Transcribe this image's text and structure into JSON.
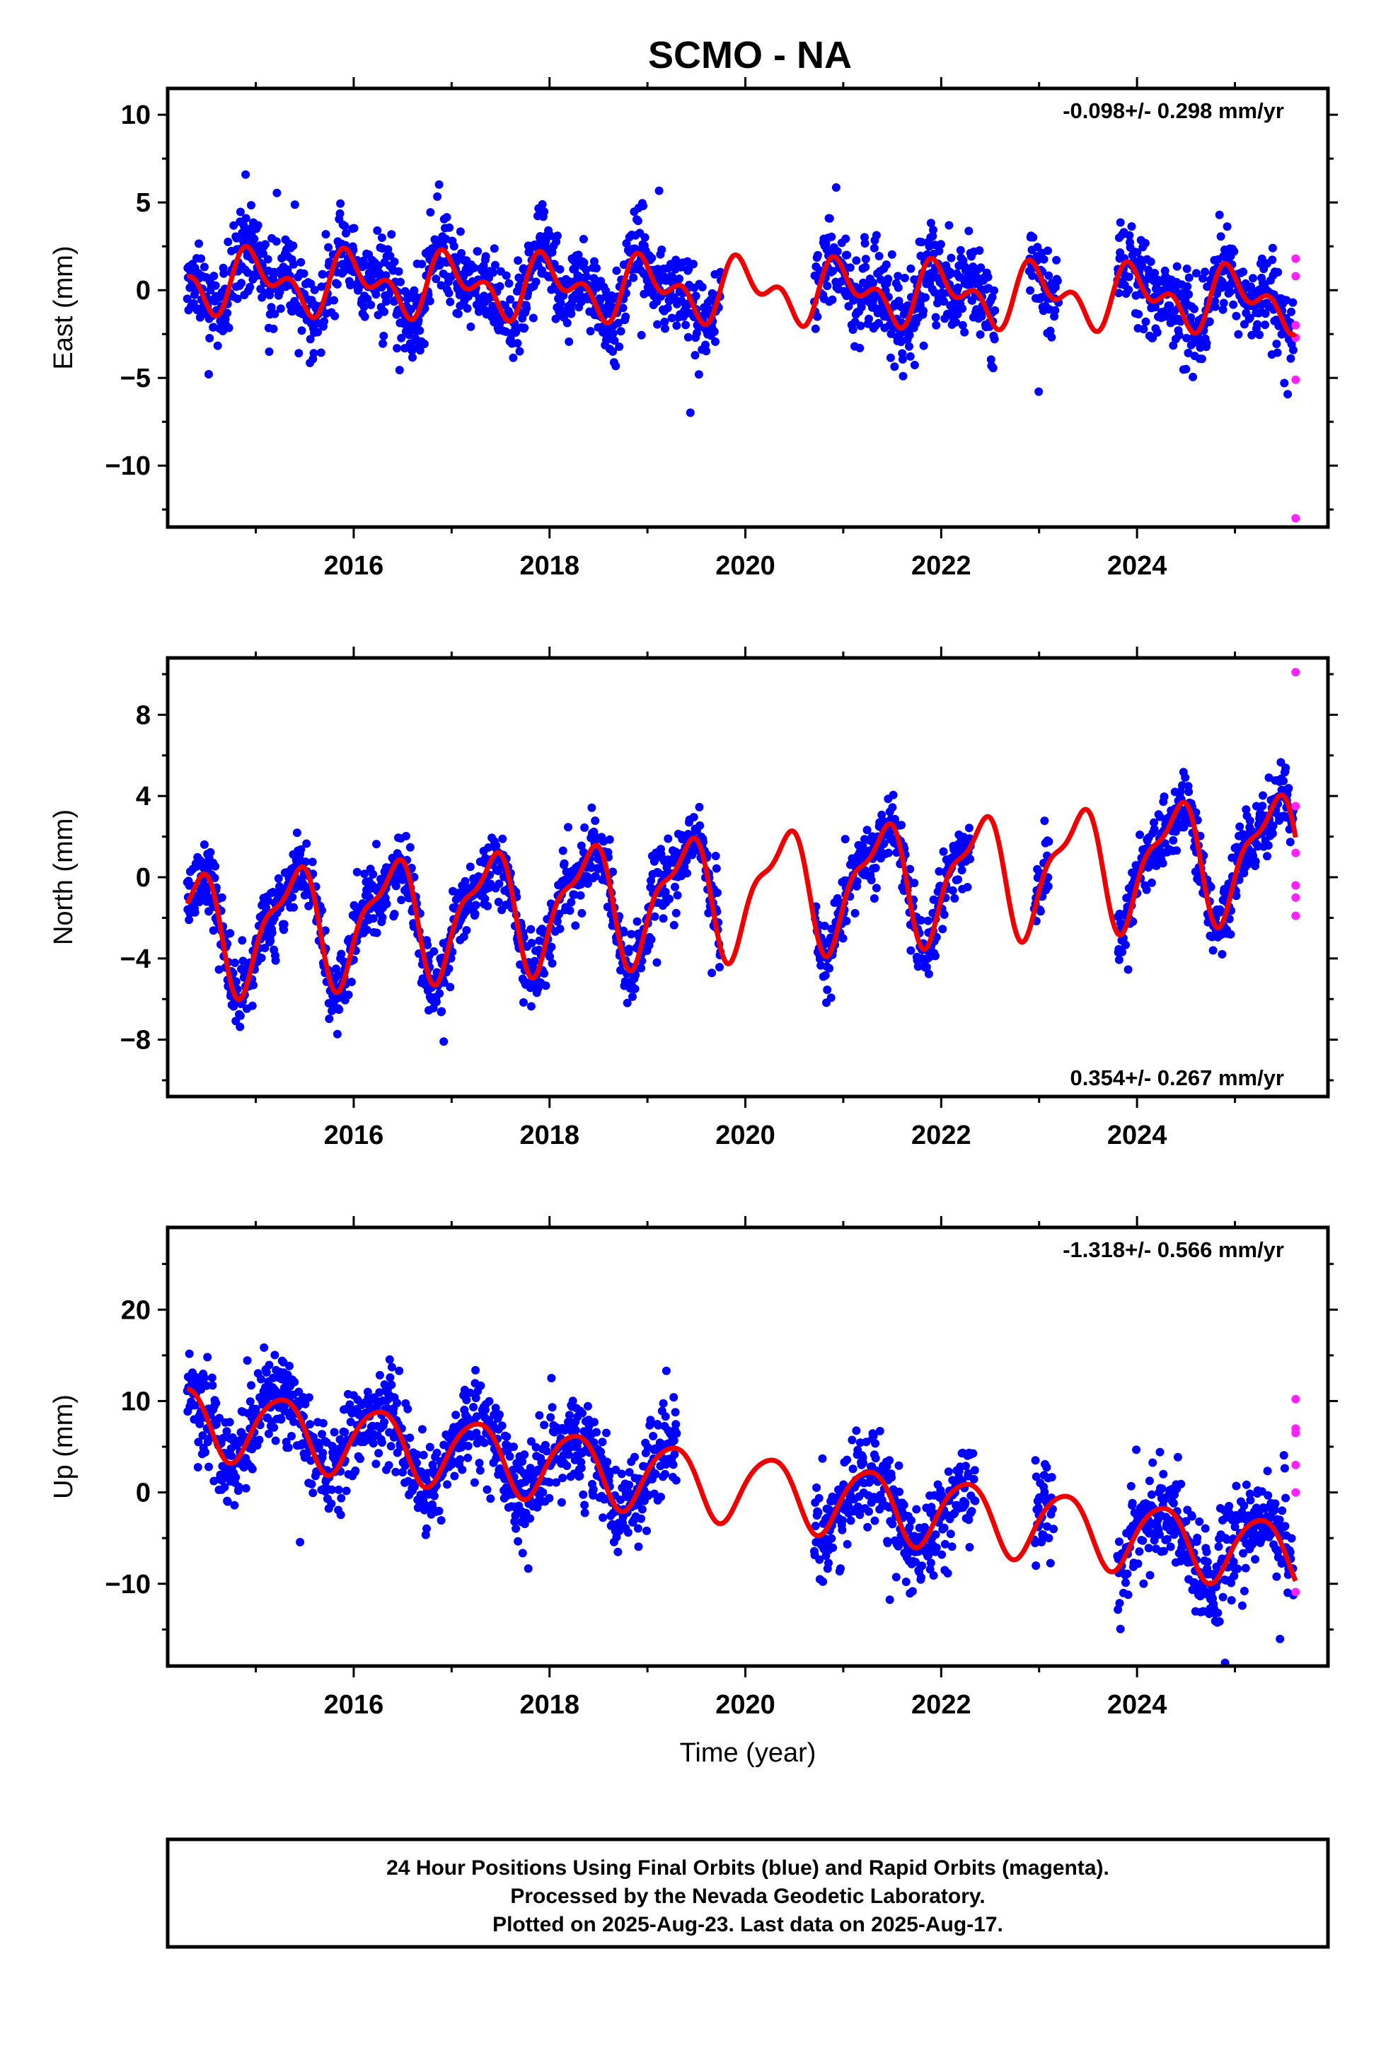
{
  "title": "SCMO - NA",
  "colors": {
    "final_orbits": "#0000ff",
    "rapid_orbits": "#ff22ff",
    "model_fit": "#ee0000",
    "frame": "#000000"
  },
  "footer": {
    "line1": "24 Hour Positions Using Final Orbits (blue) and Rapid Orbits (magenta).",
    "line2": "Processed by the Nevada Geodetic Laboratory.",
    "line3": "Plotted on 2025-Aug-23. Last data on 2025-Aug-17."
  },
  "chart_data": [
    {
      "type": "scatter",
      "ylabel": "East (mm)",
      "xlabel": "",
      "xlim": [
        2014.1,
        2025.95
      ],
      "ylim": [
        -13.5,
        11.5
      ],
      "yticks": [
        -10,
        -5,
        0,
        5,
        10
      ],
      "yminor": [
        -12.5,
        -7.5,
        -2.5,
        2.5,
        7.5
      ],
      "xticks": [
        2016,
        2018,
        2020,
        2022,
        2024
      ],
      "xminor": [
        2015,
        2017,
        2019,
        2021,
        2023,
        2025
      ],
      "rate": "-0.098+/- 0.298 mm/yr",
      "rate_position": "top-right",
      "seasonal": {
        "offset": 0.0,
        "trend": -0.098,
        "annual_amp": 1.3,
        "annual_phase": 1.6,
        "semiannual_amp": 1.0,
        "semiannual_phase": 3.2
      },
      "final_data_spans": [
        [
          2014.3,
          2019.75
        ],
        [
          2020.7,
          2022.55
        ],
        [
          2022.9,
          2023.2
        ],
        [
          2023.8,
          2025.6
        ]
      ],
      "noise_mm": 2.0,
      "rapid_values": [
        1.8,
        0.8,
        -2.0,
        -2.7,
        -5.1,
        -13.0
      ]
    },
    {
      "type": "scatter",
      "ylabel": "North (mm)",
      "xlabel": "",
      "xlim": [
        2014.1,
        2025.95
      ],
      "ylim": [
        -10.8,
        10.8
      ],
      "yticks": [
        -8,
        -4,
        0,
        4,
        8
      ],
      "yminor": [
        -10,
        -6,
        -2,
        2,
        6,
        10
      ],
      "xticks": [
        2016,
        2018,
        2020,
        2022,
        2024
      ],
      "xminor": [
        2015,
        2017,
        2019,
        2021,
        2023,
        2025
      ],
      "rate": "0.354+/- 0.267 mm/yr",
      "rate_position": "bottom-right",
      "seasonal": {
        "offset": -0.7,
        "trend": 0.354,
        "annual_amp": 2.7,
        "annual_phase": 5.5,
        "semiannual_amp": 1.0,
        "semiannual_phase": 1.0
      },
      "final_data_spans": [
        [
          2014.3,
          2019.75
        ],
        [
          2020.7,
          2022.3
        ],
        [
          2022.95,
          2023.1
        ],
        [
          2023.8,
          2025.6
        ]
      ],
      "noise_mm": 1.3,
      "rapid_values": [
        10.1,
        3.5,
        1.2,
        -0.4,
        -1.0,
        -1.9
      ]
    },
    {
      "type": "scatter",
      "ylabel": "Up (mm)",
      "xlabel": "Time (year)",
      "xlim": [
        2014.1,
        2025.95
      ],
      "ylim": [
        -19,
        29
      ],
      "yticks": [
        -10,
        0,
        10,
        20
      ],
      "yminor": [
        -15,
        -5,
        5,
        15,
        25
      ],
      "xticks": [
        2016,
        2018,
        2020,
        2022,
        2024
      ],
      "xminor": [
        2015,
        2017,
        2019,
        2021,
        2023,
        2025
      ],
      "rate": "-1.318+/- 0.566 mm/yr",
      "rate_position": "top-right",
      "seasonal": {
        "offset": 0.5,
        "trend": -1.318,
        "annual_amp": 3.8,
        "annual_phase": 0.0,
        "semiannual_amp": 0.5,
        "semiannual_phase": 2.0
      },
      "final_data_spans": [
        [
          2014.3,
          2019.3
        ],
        [
          2020.7,
          2022.35
        ],
        [
          2022.95,
          2023.15
        ],
        [
          2023.8,
          2025.6
        ]
      ],
      "noise_mm": 4.0,
      "rapid_values": [
        10.2,
        7.0,
        6.5,
        3.0,
        0.0,
        -10.9
      ]
    }
  ]
}
